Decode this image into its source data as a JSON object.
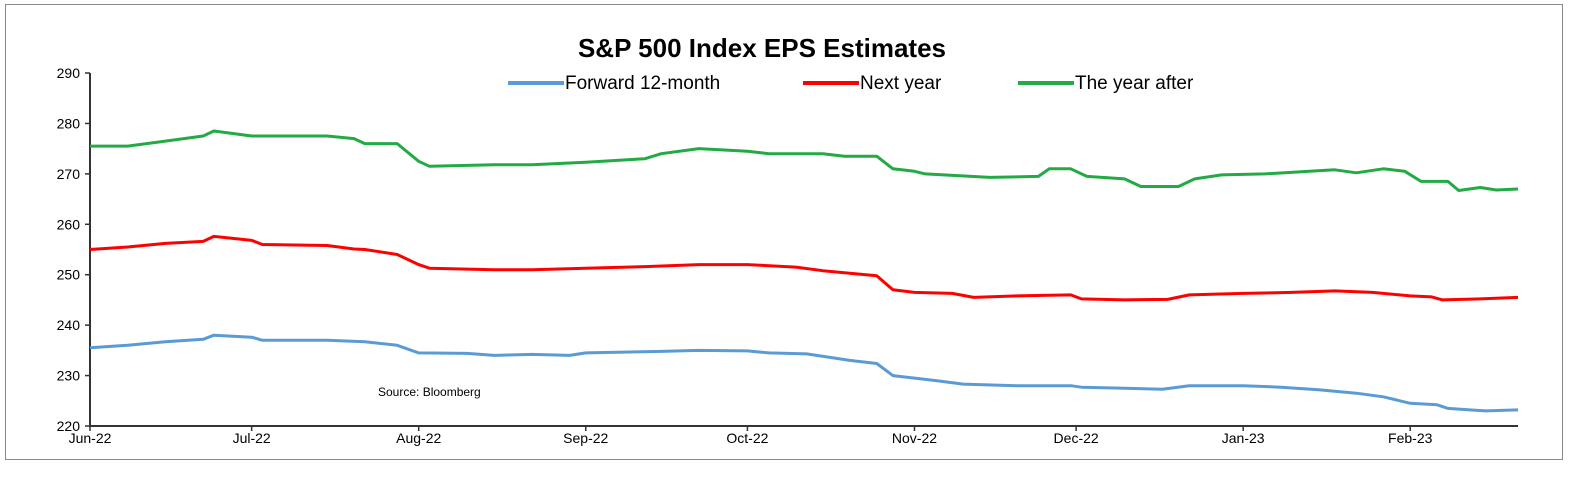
{
  "chart_data": {
    "type": "line",
    "title": "S&P 500 Index EPS Estimates",
    "source_note": "Source: Bloomberg",
    "xlabel": "",
    "ylabel": "",
    "ylim": [
      220,
      290
    ],
    "yticks": [
      220,
      230,
      240,
      250,
      260,
      270,
      280,
      290
    ],
    "xlim": [
      "2022-06-01",
      "2023-02-21"
    ],
    "xticks": [
      {
        "date": "2022-06-01",
        "label": "Jun-22"
      },
      {
        "date": "2022-07-01",
        "label": "Jul-22"
      },
      {
        "date": "2022-08-01",
        "label": "Aug-22"
      },
      {
        "date": "2022-09-01",
        "label": "Sep-22"
      },
      {
        "date": "2022-10-01",
        "label": "Oct-22"
      },
      {
        "date": "2022-11-01",
        "label": "Nov-22"
      },
      {
        "date": "2022-12-01",
        "label": "Dec-22"
      },
      {
        "date": "2023-01-01",
        "label": "Jan-23"
      },
      {
        "date": "2023-02-01",
        "label": "Feb-23"
      }
    ],
    "grid": false,
    "legend_position": "top-center",
    "series": [
      {
        "name": "Forward 12-month",
        "color": "#5b9bd5",
        "points": [
          [
            "2022-06-01",
            235.5
          ],
          [
            "2022-06-08",
            236
          ],
          [
            "2022-06-15",
            236.7
          ],
          [
            "2022-06-22",
            237.2
          ],
          [
            "2022-06-24",
            238
          ],
          [
            "2022-07-01",
            237.6
          ],
          [
            "2022-07-03",
            237
          ],
          [
            "2022-07-15",
            237
          ],
          [
            "2022-07-22",
            236.7
          ],
          [
            "2022-07-28",
            236
          ],
          [
            "2022-08-01",
            234.5
          ],
          [
            "2022-08-10",
            234.4
          ],
          [
            "2022-08-15",
            234
          ],
          [
            "2022-08-22",
            234.2
          ],
          [
            "2022-08-29",
            234
          ],
          [
            "2022-09-01",
            234.5
          ],
          [
            "2022-09-15",
            234.8
          ],
          [
            "2022-09-22",
            235
          ],
          [
            "2022-10-01",
            234.9
          ],
          [
            "2022-10-05",
            234.5
          ],
          [
            "2022-10-12",
            234.3
          ],
          [
            "2022-10-20",
            233
          ],
          [
            "2022-10-25",
            232.4
          ],
          [
            "2022-10-28",
            230
          ],
          [
            "2022-11-01",
            229.5
          ],
          [
            "2022-11-05",
            229
          ],
          [
            "2022-11-10",
            228.3
          ],
          [
            "2022-11-20",
            228
          ],
          [
            "2022-11-30",
            228
          ],
          [
            "2022-12-02",
            227.7
          ],
          [
            "2022-12-10",
            227.5
          ],
          [
            "2022-12-17",
            227.3
          ],
          [
            "2022-12-22",
            228
          ],
          [
            "2023-01-01",
            228
          ],
          [
            "2023-01-08",
            227.7
          ],
          [
            "2023-01-15",
            227.2
          ],
          [
            "2023-01-22",
            226.5
          ],
          [
            "2023-01-27",
            225.8
          ],
          [
            "2023-02-01",
            224.5
          ],
          [
            "2023-02-06",
            224.2
          ],
          [
            "2023-02-08",
            223.5
          ],
          [
            "2023-02-12",
            223.2
          ],
          [
            "2023-02-15",
            223
          ],
          [
            "2023-02-21",
            223.2
          ]
        ]
      },
      {
        "name": "Next year",
        "color": "#ff0000",
        "points": [
          [
            "2022-06-01",
            255
          ],
          [
            "2022-06-08",
            255.5
          ],
          [
            "2022-06-15",
            256.2
          ],
          [
            "2022-06-22",
            256.6
          ],
          [
            "2022-06-24",
            257.6
          ],
          [
            "2022-07-01",
            256.8
          ],
          [
            "2022-07-03",
            256
          ],
          [
            "2022-07-15",
            255.8
          ],
          [
            "2022-07-20",
            255.1
          ],
          [
            "2022-07-22",
            255
          ],
          [
            "2022-07-28",
            254
          ],
          [
            "2022-08-01",
            252
          ],
          [
            "2022-08-03",
            251.3
          ],
          [
            "2022-08-15",
            251
          ],
          [
            "2022-08-22",
            251
          ],
          [
            "2022-09-01",
            251.3
          ],
          [
            "2022-09-12",
            251.6
          ],
          [
            "2022-09-22",
            252
          ],
          [
            "2022-10-01",
            252
          ],
          [
            "2022-10-10",
            251.5
          ],
          [
            "2022-10-15",
            250.8
          ],
          [
            "2022-10-25",
            249.8
          ],
          [
            "2022-10-28",
            247
          ],
          [
            "2022-11-01",
            246.5
          ],
          [
            "2022-11-08",
            246.3
          ],
          [
            "2022-11-12",
            245.5
          ],
          [
            "2022-11-20",
            245.8
          ],
          [
            "2022-11-30",
            246
          ],
          [
            "2022-12-02",
            245.2
          ],
          [
            "2022-12-10",
            245
          ],
          [
            "2022-12-18",
            245.1
          ],
          [
            "2022-12-22",
            246
          ],
          [
            "2023-01-01",
            246.3
          ],
          [
            "2023-01-10",
            246.5
          ],
          [
            "2023-01-18",
            246.8
          ],
          [
            "2023-01-25",
            246.5
          ],
          [
            "2023-01-30",
            246
          ],
          [
            "2023-02-01",
            245.8
          ],
          [
            "2023-02-05",
            245.6
          ],
          [
            "2023-02-07",
            245
          ],
          [
            "2023-02-14",
            245.2
          ],
          [
            "2023-02-21",
            245.5
          ]
        ]
      },
      {
        "name": "The year after",
        "color": "#22aa44",
        "points": [
          [
            "2022-06-01",
            275.5
          ],
          [
            "2022-06-08",
            275.5
          ],
          [
            "2022-06-15",
            276.5
          ],
          [
            "2022-06-22",
            277.5
          ],
          [
            "2022-06-24",
            278.5
          ],
          [
            "2022-07-01",
            277.5
          ],
          [
            "2022-07-08",
            277.5
          ],
          [
            "2022-07-15",
            277.5
          ],
          [
            "2022-07-20",
            277
          ],
          [
            "2022-07-22",
            276
          ],
          [
            "2022-07-28",
            276
          ],
          [
            "2022-08-01",
            272.5
          ],
          [
            "2022-08-03",
            271.5
          ],
          [
            "2022-08-15",
            271.8
          ],
          [
            "2022-08-22",
            271.8
          ],
          [
            "2022-09-01",
            272.3
          ],
          [
            "2022-09-12",
            273
          ],
          [
            "2022-09-15",
            274
          ],
          [
            "2022-09-22",
            275
          ],
          [
            "2022-10-01",
            274.5
          ],
          [
            "2022-10-05",
            274
          ],
          [
            "2022-10-15",
            274
          ],
          [
            "2022-10-19",
            273.5
          ],
          [
            "2022-10-25",
            273.5
          ],
          [
            "2022-10-28",
            271
          ],
          [
            "2022-11-01",
            270.5
          ],
          [
            "2022-11-03",
            270
          ],
          [
            "2022-11-15",
            269.3
          ],
          [
            "2022-11-24",
            269.5
          ],
          [
            "2022-11-26",
            271
          ],
          [
            "2022-11-30",
            271
          ],
          [
            "2022-12-03",
            269.5
          ],
          [
            "2022-12-10",
            269
          ],
          [
            "2022-12-13",
            267.5
          ],
          [
            "2022-12-20",
            267.5
          ],
          [
            "2022-12-23",
            269
          ],
          [
            "2022-12-28",
            269.8
          ],
          [
            "2023-01-05",
            270
          ],
          [
            "2023-01-18",
            270.8
          ],
          [
            "2023-01-22",
            270.2
          ],
          [
            "2023-01-27",
            271
          ],
          [
            "2023-01-31",
            270.5
          ],
          [
            "2023-02-03",
            268.5
          ],
          [
            "2023-02-08",
            268.5
          ],
          [
            "2023-02-10",
            266.7
          ],
          [
            "2023-02-14",
            267.3
          ],
          [
            "2023-02-17",
            266.8
          ],
          [
            "2023-02-21",
            267
          ]
        ]
      }
    ]
  }
}
